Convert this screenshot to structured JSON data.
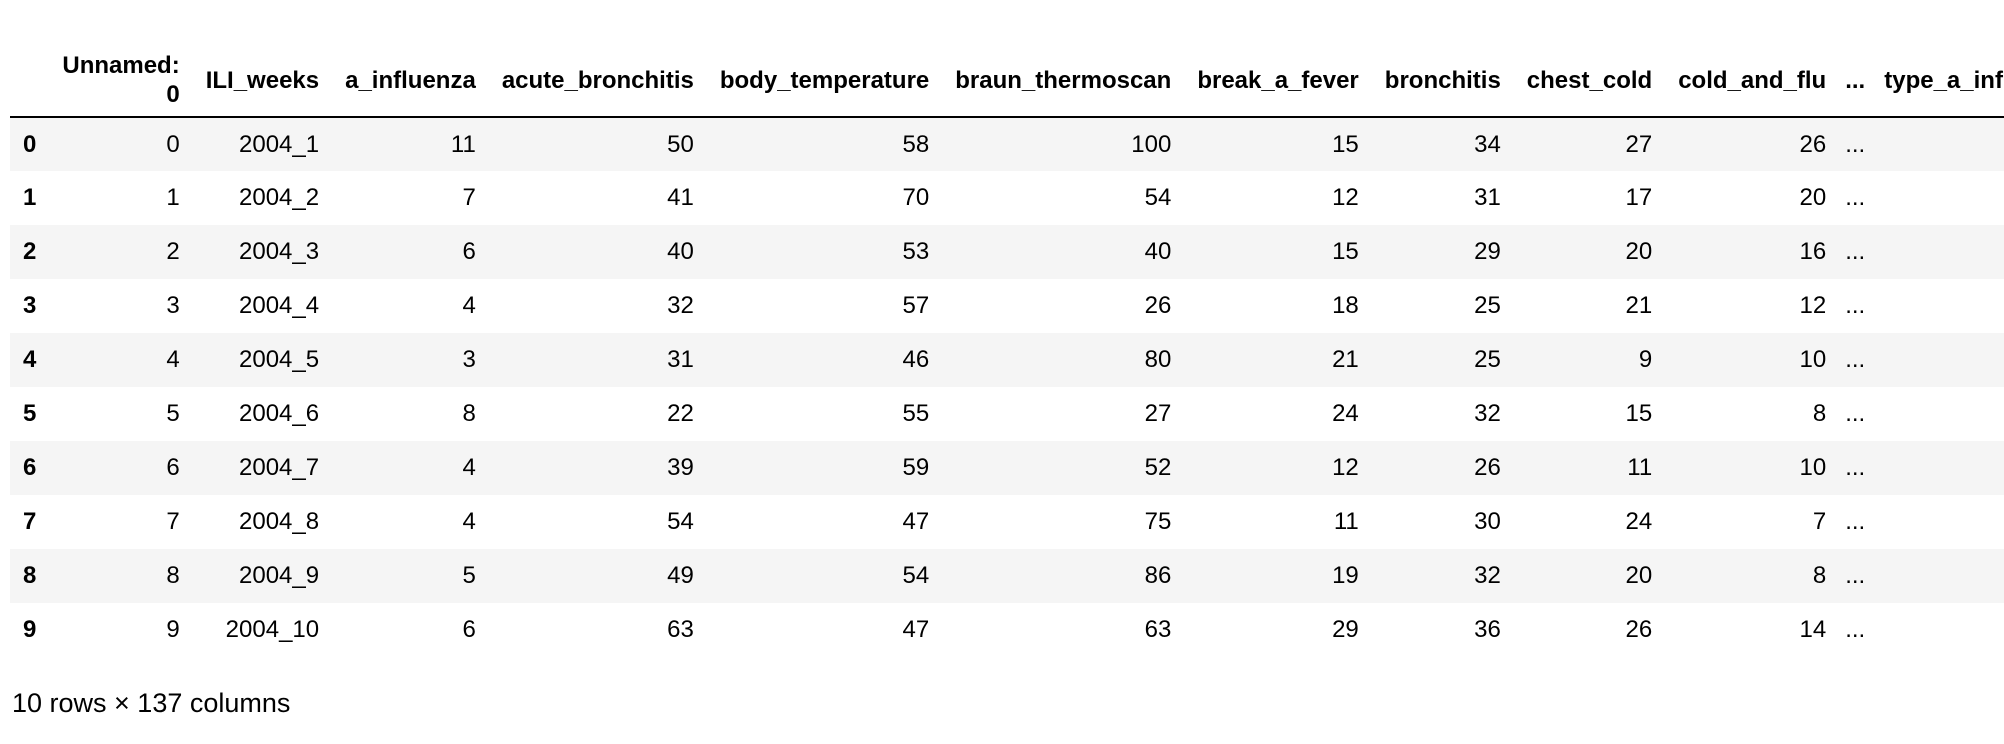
{
  "table": {
    "columns": [
      "",
      "Unnamed:\n0",
      "ILI_weeks",
      "a_influenza",
      "acute_bronchitis",
      "body_temperature",
      "braun_thermoscan",
      "break_a_fever",
      "bronchitis",
      "chest_cold",
      "cold_and_flu",
      "...",
      "type_a_influenza"
    ],
    "rows": [
      {
        "index": "0",
        "cells": [
          "0",
          "2004_1",
          "11",
          "50",
          "58",
          "100",
          "15",
          "34",
          "27",
          "26",
          "...",
          ""
        ]
      },
      {
        "index": "1",
        "cells": [
          "1",
          "2004_2",
          "7",
          "41",
          "70",
          "54",
          "12",
          "31",
          "17",
          "20",
          "...",
          ""
        ]
      },
      {
        "index": "2",
        "cells": [
          "2",
          "2004_3",
          "6",
          "40",
          "53",
          "40",
          "15",
          "29",
          "20",
          "16",
          "...",
          ""
        ]
      },
      {
        "index": "3",
        "cells": [
          "3",
          "2004_4",
          "4",
          "32",
          "57",
          "26",
          "18",
          "25",
          "21",
          "12",
          "...",
          ""
        ]
      },
      {
        "index": "4",
        "cells": [
          "4",
          "2004_5",
          "3",
          "31",
          "46",
          "80",
          "21",
          "25",
          "9",
          "10",
          "...",
          ""
        ]
      },
      {
        "index": "5",
        "cells": [
          "5",
          "2004_6",
          "8",
          "22",
          "55",
          "27",
          "24",
          "32",
          "15",
          "8",
          "...",
          ""
        ]
      },
      {
        "index": "6",
        "cells": [
          "6",
          "2004_7",
          "4",
          "39",
          "59",
          "52",
          "12",
          "26",
          "11",
          "10",
          "...",
          ""
        ]
      },
      {
        "index": "7",
        "cells": [
          "7",
          "2004_8",
          "4",
          "54",
          "47",
          "75",
          "11",
          "30",
          "24",
          "7",
          "...",
          ""
        ]
      },
      {
        "index": "8",
        "cells": [
          "8",
          "2004_9",
          "5",
          "49",
          "54",
          "86",
          "19",
          "32",
          "20",
          "8",
          "...",
          ""
        ]
      },
      {
        "index": "9",
        "cells": [
          "9",
          "2004_10",
          "6",
          "63",
          "47",
          "63",
          "29",
          "36",
          "26",
          "14",
          "...",
          ""
        ]
      }
    ]
  },
  "summary": "10 rows × 137 columns",
  "colors": {
    "stripe": "#f5f5f5",
    "text": "#000000",
    "header_rule": "#000000"
  }
}
